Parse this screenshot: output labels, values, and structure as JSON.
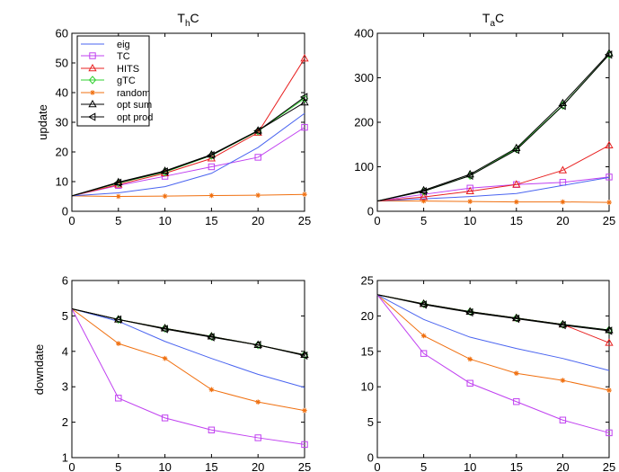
{
  "colors": {
    "eig": "#4a64f0",
    "TC": "#c040f0",
    "HITS": "#e82020",
    "gTC": "#30d030",
    "random": "#f07010",
    "opt sum": "#000000",
    "opt prod": "#000000"
  },
  "markers": {
    "eig": "none",
    "TC": "square",
    "HITS": "triangle-up",
    "gTC": "diamond",
    "random": "star",
    "opt sum": "triangle-up",
    "opt prod": "triangle-left"
  },
  "chart_data": [
    {
      "type": "line",
      "title_main": "T",
      "title_sub": "h",
      "title_tail": "C",
      "ylabel": "update",
      "xlim": [
        0,
        25
      ],
      "ylim": [
        0,
        60
      ],
      "xticks": [
        0,
        5,
        10,
        15,
        20,
        25
      ],
      "yticks": [
        0,
        10,
        20,
        30,
        40,
        50,
        60
      ],
      "x": [
        0,
        5,
        10,
        15,
        20,
        25
      ],
      "legend": {
        "position": "top-left",
        "entries": [
          "eig",
          "TC",
          "HITS",
          "gTC",
          "random",
          "opt sum",
          "opt prod"
        ]
      },
      "series": [
        {
          "name": "eig",
          "values": [
            5.2,
            6.2,
            8.3,
            12.8,
            21.5,
            33.0
          ]
        },
        {
          "name": "TC",
          "values": [
            5.2,
            8.7,
            11.8,
            15.0,
            18.2,
            28.3
          ]
        },
        {
          "name": "HITS",
          "values": [
            5.2,
            9.0,
            12.8,
            17.8,
            26.5,
            51.5
          ]
        },
        {
          "name": "gTC",
          "values": [
            5.2,
            9.5,
            13.2,
            18.8,
            27.0,
            38.0
          ]
        },
        {
          "name": "random",
          "values": [
            5.2,
            5.0,
            5.1,
            5.3,
            5.4,
            5.7
          ]
        },
        {
          "name": "opt sum",
          "values": [
            5.2,
            9.8,
            13.6,
            19.1,
            27.2,
            36.7
          ]
        },
        {
          "name": "opt prod",
          "values": [
            5.2,
            9.6,
            13.4,
            18.9,
            27.1,
            38.5
          ]
        }
      ]
    },
    {
      "type": "line",
      "title_main": "T",
      "title_sub": "a",
      "title_tail": "C",
      "ylabel": "",
      "xlim": [
        0,
        25
      ],
      "ylim": [
        0,
        400
      ],
      "xticks": [
        0,
        5,
        10,
        15,
        20,
        25
      ],
      "yticks": [
        0,
        100,
        200,
        300,
        400
      ],
      "x": [
        0,
        5,
        10,
        15,
        20,
        25
      ],
      "series": [
        {
          "name": "eig",
          "values": [
            23,
            28,
            33,
            40,
            58,
            76
          ]
        },
        {
          "name": "TC",
          "values": [
            23,
            38,
            52,
            60,
            65,
            77
          ]
        },
        {
          "name": "HITS",
          "values": [
            23,
            32,
            45,
            60,
            92,
            148
          ]
        },
        {
          "name": "gTC",
          "values": [
            23,
            45,
            80,
            140,
            238,
            352
          ]
        },
        {
          "name": "random",
          "values": [
            23,
            23,
            22,
            21,
            21,
            20
          ]
        },
        {
          "name": "opt sum",
          "values": [
            23,
            47,
            83,
            142,
            243,
            355
          ]
        },
        {
          "name": "opt prod",
          "values": [
            23,
            45,
            80,
            138,
            237,
            352
          ]
        }
      ]
    },
    {
      "type": "line",
      "title_main": "",
      "title_sub": "",
      "title_tail": "",
      "ylabel": "downdate",
      "xlim": [
        0,
        25
      ],
      "ylim": [
        1,
        6
      ],
      "xticks": [
        0,
        5,
        10,
        15,
        20,
        25
      ],
      "yticks": [
        1,
        2,
        3,
        4,
        5,
        6
      ],
      "x": [
        0,
        5,
        10,
        15,
        20,
        25
      ],
      "series": [
        {
          "name": "eig",
          "values": [
            5.2,
            4.85,
            4.28,
            3.8,
            3.35,
            2.98
          ]
        },
        {
          "name": "TC",
          "values": [
            5.2,
            2.68,
            2.12,
            1.78,
            1.56,
            1.37
          ]
        },
        {
          "name": "HITS",
          "values": [
            5.2,
            4.9,
            4.65,
            4.42,
            4.18,
            3.9
          ]
        },
        {
          "name": "gTC",
          "values": [
            5.2,
            4.9,
            4.65,
            4.42,
            4.18,
            3.9
          ]
        },
        {
          "name": "random",
          "values": [
            5.2,
            4.22,
            3.8,
            2.92,
            2.57,
            2.33
          ]
        },
        {
          "name": "opt sum",
          "values": [
            5.2,
            4.9,
            4.65,
            4.42,
            4.18,
            3.9
          ]
        },
        {
          "name": "opt prod",
          "values": [
            5.2,
            4.9,
            4.63,
            4.4,
            4.18,
            3.88
          ]
        }
      ]
    },
    {
      "type": "line",
      "title_main": "",
      "title_sub": "",
      "title_tail": "",
      "ylabel": "",
      "xlim": [
        0,
        25
      ],
      "ylim": [
        0,
        25
      ],
      "xticks": [
        0,
        5,
        10,
        15,
        20,
        25
      ],
      "yticks": [
        0,
        5,
        10,
        15,
        20,
        25
      ],
      "x": [
        0,
        5,
        10,
        15,
        20,
        25
      ],
      "series": [
        {
          "name": "eig",
          "values": [
            23.0,
            19.5,
            17.0,
            15.4,
            14.0,
            12.3
          ]
        },
        {
          "name": "TC",
          "values": [
            23.0,
            14.7,
            10.5,
            7.9,
            5.3,
            3.5
          ]
        },
        {
          "name": "HITS",
          "values": [
            23.0,
            21.7,
            20.6,
            19.7,
            18.8,
            16.2
          ]
        },
        {
          "name": "gTC",
          "values": [
            23.0,
            21.7,
            20.6,
            19.7,
            18.8,
            18.0
          ]
        },
        {
          "name": "random",
          "values": [
            23.0,
            17.2,
            13.9,
            11.9,
            10.9,
            9.5
          ]
        },
        {
          "name": "opt sum",
          "values": [
            23.0,
            21.7,
            20.6,
            19.7,
            18.8,
            18.0
          ]
        },
        {
          "name": "opt prod",
          "values": [
            23.0,
            21.6,
            20.5,
            19.6,
            18.7,
            17.9
          ]
        }
      ]
    }
  ]
}
